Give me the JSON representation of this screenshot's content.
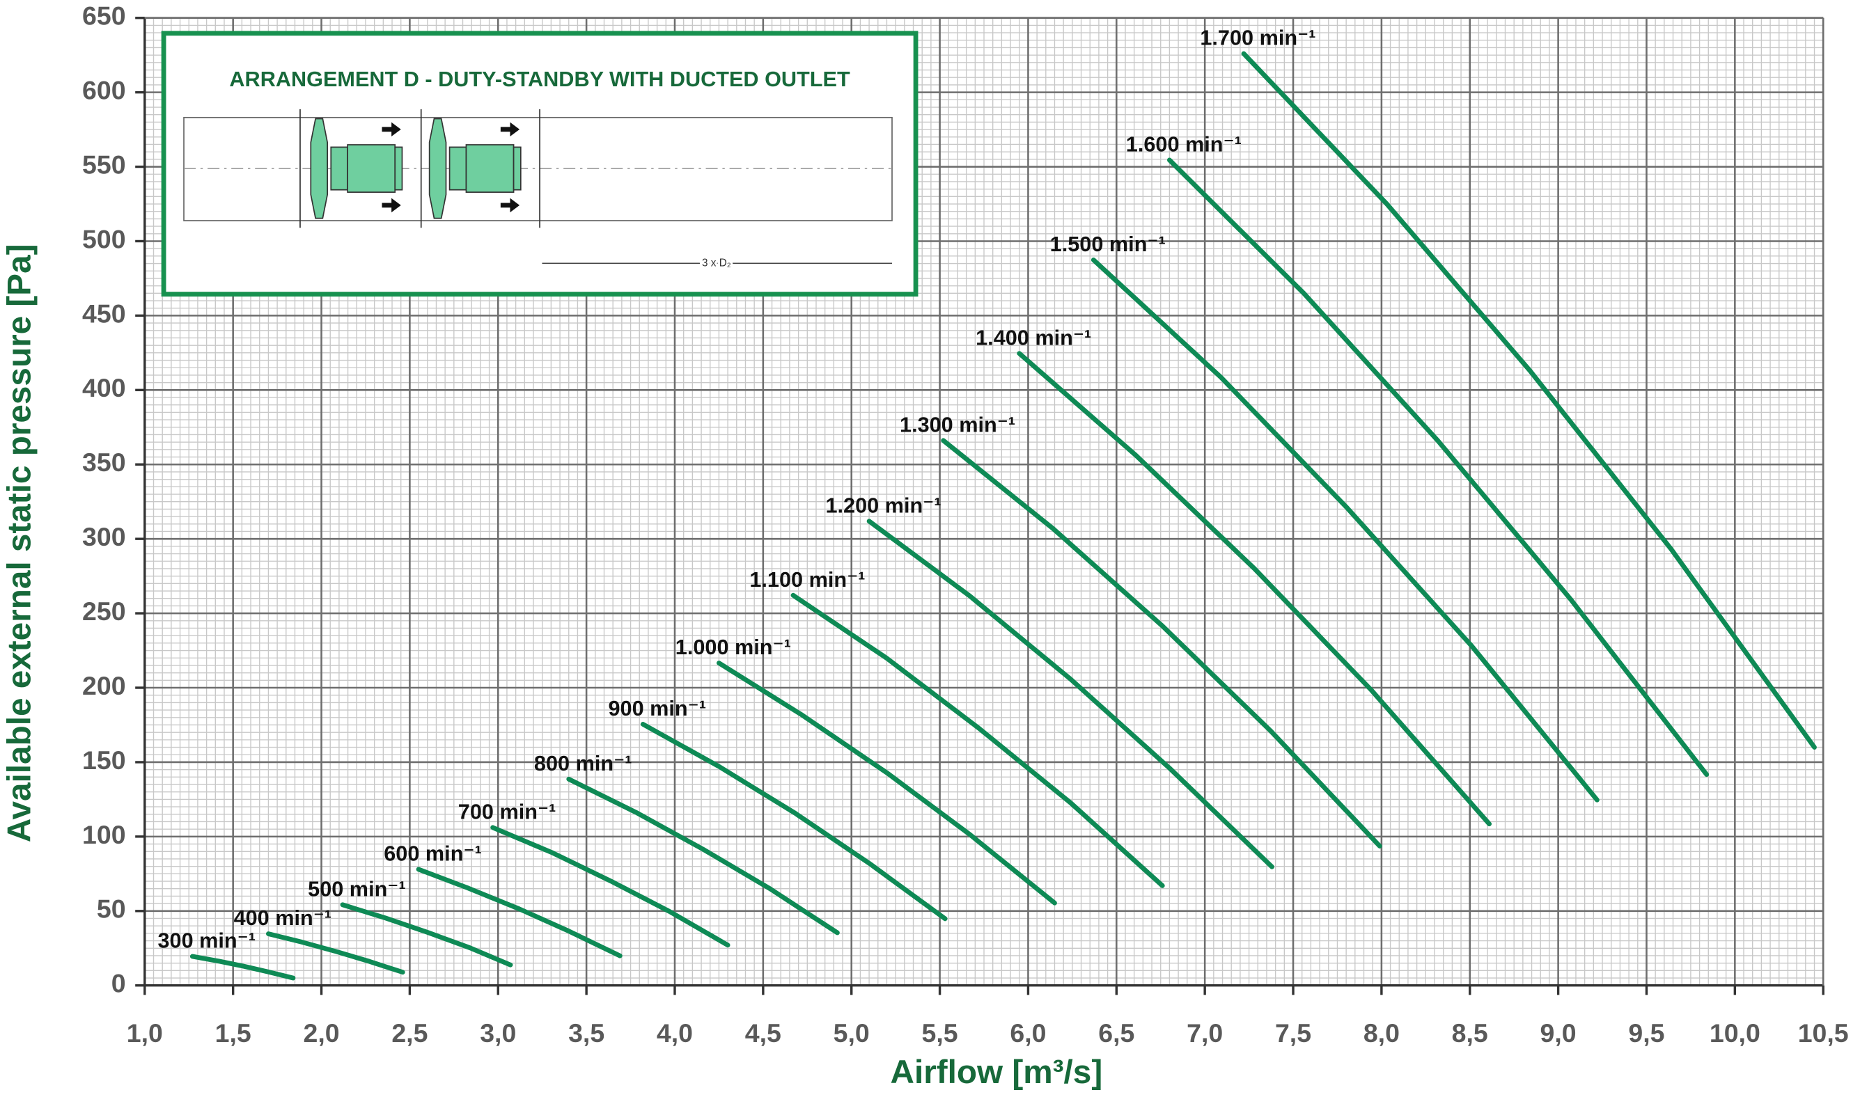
{
  "chart_data": {
    "type": "line",
    "x_label": "Airflow [m³/s]",
    "y_label": "Available external static pressure [Pa]",
    "annotations": [
      "ARRANGEMENT D - DUTY-STANDBY WITH DUCTED OUTLET",
      "3 x D₂"
    ],
    "xlim": [
      1.0,
      10.5
    ],
    "ylim": [
      0,
      650
    ],
    "xticks": [
      {
        "value": 1.0,
        "label": "1,0"
      },
      {
        "value": 1.5,
        "label": "1,5"
      },
      {
        "value": 2.0,
        "label": "2,0"
      },
      {
        "value": 2.5,
        "label": "2,5"
      },
      {
        "value": 3.0,
        "label": "3,0"
      },
      {
        "value": 3.5,
        "label": "3,5"
      },
      {
        "value": 4.0,
        "label": "4,0"
      },
      {
        "value": 4.5,
        "label": "4,5"
      },
      {
        "value": 5.0,
        "label": "5,0"
      },
      {
        "value": 5.5,
        "label": "5,5"
      },
      {
        "value": 6.0,
        "label": "6,0"
      },
      {
        "value": 6.5,
        "label": "6,5"
      },
      {
        "value": 7.0,
        "label": "7,0"
      },
      {
        "value": 7.5,
        "label": "7,5"
      },
      {
        "value": 8.0,
        "label": "8,0"
      },
      {
        "value": 8.5,
        "label": "8,5"
      },
      {
        "value": 9.0,
        "label": "9,0"
      },
      {
        "value": 9.5,
        "label": "9,5"
      },
      {
        "value": 10.0,
        "label": "10,0"
      },
      {
        "value": 10.5,
        "label": "10,5"
      }
    ],
    "yticks": [
      0,
      50,
      100,
      150,
      200,
      250,
      300,
      350,
      400,
      450,
      500,
      550,
      600,
      650
    ],
    "grid": true,
    "series": [
      {
        "name": "300 min⁻¹",
        "color": "#0e8a55",
        "x": [
          1.27,
          1.42,
          1.56,
          1.7,
          1.84
        ],
        "values": [
          19.5,
          16.3,
          12.9,
          9.1,
          5.0
        ]
      },
      {
        "name": "400 min⁻¹",
        "color": "#0e8a55",
        "x": [
          1.7,
          1.89,
          2.08,
          2.27,
          2.46
        ],
        "values": [
          34.7,
          29.1,
          22.9,
          16.2,
          8.9
        ]
      },
      {
        "name": "500 min⁻¹",
        "color": "#0e8a55",
        "x": [
          2.12,
          2.36,
          2.6,
          2.84,
          3.07
        ],
        "values": [
          54.2,
          45.4,
          35.7,
          25.3,
          13.8
        ]
      },
      {
        "name": "600 min⁻¹",
        "color": "#0e8a55",
        "x": [
          2.55,
          2.83,
          3.12,
          3.4,
          3.69
        ],
        "values": [
          78.0,
          65.4,
          51.4,
          36.5,
          19.9
        ]
      },
      {
        "name": "700 min⁻¹",
        "color": "#0e8a55",
        "x": [
          2.97,
          3.31,
          3.64,
          3.97,
          4.3
        ],
        "values": [
          106.1,
          89.0,
          70.0,
          49.7,
          27.1
        ]
      },
      {
        "name": "800 min⁻¹",
        "color": "#0e8a55",
        "x": [
          3.4,
          3.78,
          4.16,
          4.54,
          4.92
        ],
        "values": [
          138.6,
          116.3,
          91.5,
          64.9,
          35.4
        ]
      },
      {
        "name": "900 min⁻¹",
        "color": "#0e8a55",
        "x": [
          3.82,
          4.25,
          4.68,
          5.1,
          5.53
        ],
        "values": [
          175.5,
          147.1,
          115.8,
          82.1,
          44.8
        ]
      },
      {
        "name": "1.000 min⁻¹",
        "color": "#0e8a55",
        "x": [
          4.25,
          4.72,
          5.2,
          5.67,
          6.15
        ],
        "values": [
          216.6,
          181.7,
          142.9,
          101.4,
          55.4
        ]
      },
      {
        "name": "1.100 min⁻¹",
        "color": "#0e8a55",
        "x": [
          4.67,
          5.2,
          5.72,
          6.24,
          6.76
        ],
        "values": [
          262.1,
          219.8,
          172.9,
          122.7,
          67.0
        ]
      },
      {
        "name": "1.200 min⁻¹",
        "color": "#0e8a55",
        "x": [
          5.1,
          5.67,
          6.24,
          6.8,
          7.38
        ],
        "values": [
          311.9,
          261.6,
          205.8,
          146.0,
          79.7
        ]
      },
      {
        "name": "1.300 min⁻¹",
        "color": "#0e8a55",
        "x": [
          5.52,
          6.14,
          6.76,
          7.37,
          7.99
        ],
        "values": [
          366.1,
          307.0,
          241.5,
          171.3,
          93.6
        ]
      },
      {
        "name": "1.400 min⁻¹",
        "color": "#0e8a55",
        "x": [
          5.95,
          6.61,
          7.28,
          7.94,
          8.61
        ],
        "values": [
          424.6,
          356.1,
          280.1,
          198.7,
          108.5
        ]
      },
      {
        "name": "1.500 min⁻¹",
        "color": "#0e8a55",
        "x": [
          6.37,
          7.09,
          7.8,
          8.51,
          9.22
        ],
        "values": [
          487.4,
          408.7,
          321.5,
          228.1,
          124.6
        ]
      },
      {
        "name": "1.600 min⁻¹",
        "color": "#0e8a55",
        "x": [
          6.8,
          7.56,
          8.32,
          9.07,
          9.84
        ],
        "values": [
          554.5,
          465.0,
          365.8,
          259.5,
          141.7
        ]
      },
      {
        "name": "1.700 min⁻¹",
        "color": "#0e8a55",
        "x": [
          7.22,
          8.03,
          8.84,
          9.64,
          10.45
        ],
        "values": [
          626,
          525,
          413,
          293,
          160
        ]
      }
    ]
  }
}
